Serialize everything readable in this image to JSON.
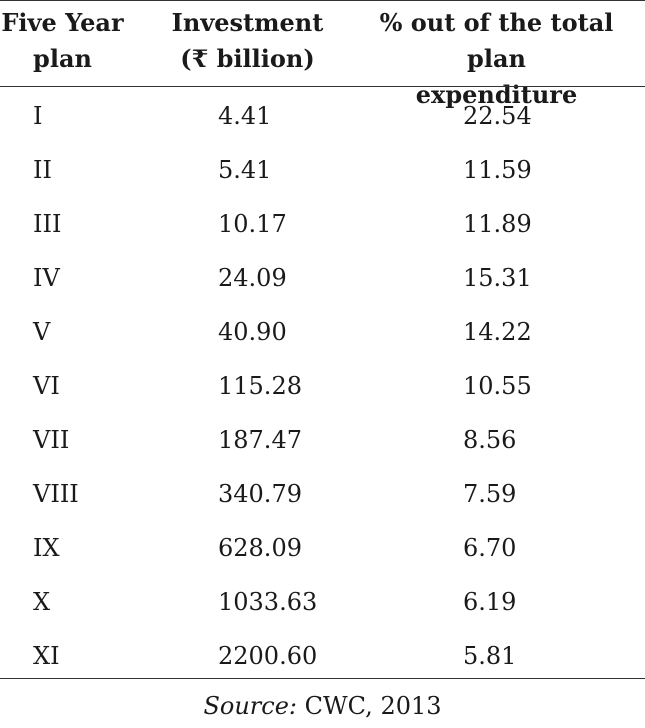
{
  "table": {
    "headers": {
      "plan": [
        "Five Year",
        "plan"
      ],
      "investment": [
        "Investment",
        "(₹ billion)"
      ],
      "percent": [
        "% out of the total plan",
        "expenditure"
      ]
    },
    "rows": [
      {
        "plan": "I",
        "investment": "4.41",
        "percent": "22.54"
      },
      {
        "plan": "II",
        "investment": "5.41",
        "percent": "11.59"
      },
      {
        "plan": "III",
        "investment": "10.17",
        "percent": "11.89"
      },
      {
        "plan": "IV",
        "investment": "24.09",
        "percent": "15.31"
      },
      {
        "plan": "V",
        "investment": "40.90",
        "percent": "14.22"
      },
      {
        "plan": "VI",
        "investment": "115.28",
        "percent": "10.55"
      },
      {
        "plan": "VII",
        "investment": "187.47",
        "percent": "8.56"
      },
      {
        "plan": "VIII",
        "investment": "340.79",
        "percent": "7.59"
      },
      {
        "plan": "IX",
        "investment": "628.09",
        "percent": "6.70"
      },
      {
        "plan": "X",
        "investment": "1033.63",
        "percent": "6.19"
      },
      {
        "plan": "XI",
        "investment": "2200.60",
        "percent": "5.81"
      }
    ]
  },
  "source": {
    "label": "Source:",
    "text": " CWC, 2013"
  }
}
